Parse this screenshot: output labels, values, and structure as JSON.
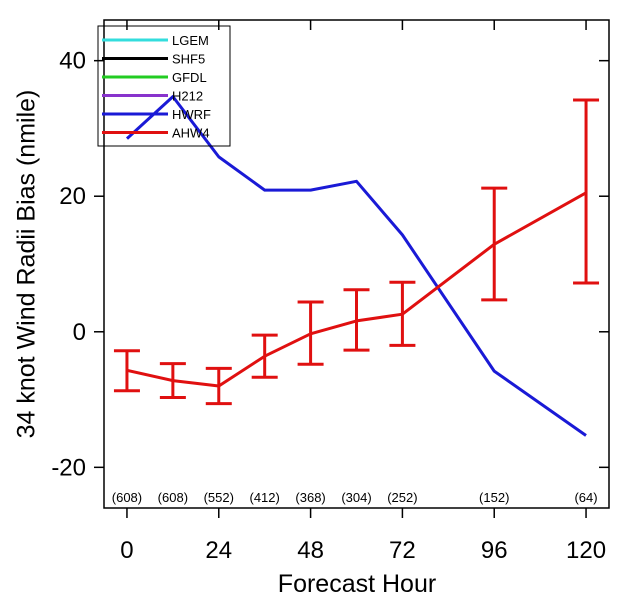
{
  "chart_data": {
    "type": "line",
    "title": "",
    "xlabel": "Forecast Hour",
    "ylabel": "34 knot Wind Radii Bias (nmile)",
    "xlim": [
      -6,
      126
    ],
    "ylim": [
      -26,
      46
    ],
    "x_ticks": [
      0,
      24,
      48,
      72,
      96,
      120
    ],
    "x_tick_labels": [
      "0",
      "24",
      "48",
      "72",
      "96",
      "120"
    ],
    "y_ticks": [
      -20,
      0,
      20,
      40
    ],
    "y_tick_labels": [
      "-20",
      "0",
      "20",
      "40"
    ],
    "grid": false,
    "legend": {
      "placement": "top-left",
      "entries": [
        {
          "name": "LGEM",
          "color": "#33dddd"
        },
        {
          "name": "SHF5",
          "color": "#000000"
        },
        {
          "name": "GFDL",
          "color": "#22cc22"
        },
        {
          "name": "H212",
          "color": "#8833cc"
        },
        {
          "name": "HWRF",
          "color": "#1a1ad6"
        },
        {
          "name": "AHW4",
          "color": "#e01010"
        }
      ]
    },
    "sample_counts": [
      {
        "x": 0,
        "label": "(608)"
      },
      {
        "x": 12,
        "label": "(608)"
      },
      {
        "x": 24,
        "label": "(552)"
      },
      {
        "x": 36,
        "label": "(412)"
      },
      {
        "x": 48,
        "label": "(368)"
      },
      {
        "x": 60,
        "label": "(304)"
      },
      {
        "x": 72,
        "label": "(252)"
      },
      {
        "x": 96,
        "label": "(152)"
      },
      {
        "x": 120,
        "label": "(64)"
      }
    ],
    "series": [
      {
        "name": "HWRF",
        "color": "#1a1ad6",
        "x": [
          0,
          12,
          24,
          36,
          48,
          60,
          72,
          96,
          120
        ],
        "y": [
          28.5,
          34.7,
          25.8,
          20.9,
          20.9,
          22.2,
          14.3,
          -5.8,
          -15.3
        ]
      },
      {
        "name": "AHW4",
        "color": "#e01010",
        "x": [
          0,
          12,
          24,
          36,
          48,
          60,
          72,
          96,
          120
        ],
        "y": [
          -5.7,
          -7.2,
          -8.0,
          -3.6,
          -0.3,
          1.6,
          2.6,
          12.9,
          20.5
        ],
        "err_low": [
          -8.7,
          -9.7,
          -10.6,
          -6.7,
          -4.8,
          -2.7,
          -2.0,
          4.7,
          7.2
        ],
        "err_high": [
          -2.8,
          -4.7,
          -5.4,
          -0.5,
          4.4,
          6.2,
          7.3,
          21.2,
          34.2
        ]
      }
    ]
  }
}
